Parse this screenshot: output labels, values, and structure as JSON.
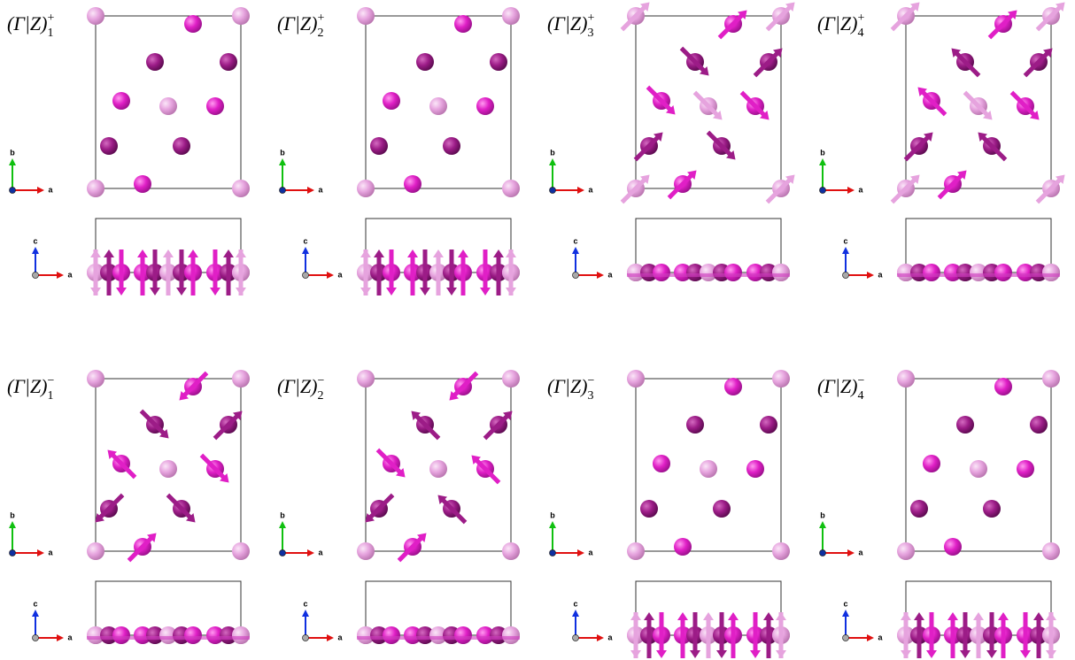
{
  "panels": [
    {
      "label": {
        "main": "(Γ|Z)",
        "sub": "1",
        "sup": "+"
      }
    },
    {
      "label": {
        "main": "(Γ|Z)",
        "sub": "2",
        "sup": "+"
      }
    },
    {
      "label": {
        "main": "(Γ|Z)",
        "sub": "3",
        "sup": "+"
      }
    },
    {
      "label": {
        "main": "(Γ|Z)",
        "sub": "4",
        "sup": "+"
      }
    },
    {
      "label": {
        "main": "(Γ|Z)",
        "sub": "1",
        "sup": "−"
      }
    },
    {
      "label": {
        "main": "(Γ|Z)",
        "sub": "2",
        "sup": "−"
      }
    },
    {
      "label": {
        "main": "(Γ|Z)",
        "sub": "3",
        "sup": "−"
      }
    },
    {
      "label": {
        "main": "(Γ|Z)",
        "sub": "4",
        "sup": "−"
      }
    }
  ],
  "axes": {
    "a": "a",
    "b": "b",
    "c": "c"
  }
}
